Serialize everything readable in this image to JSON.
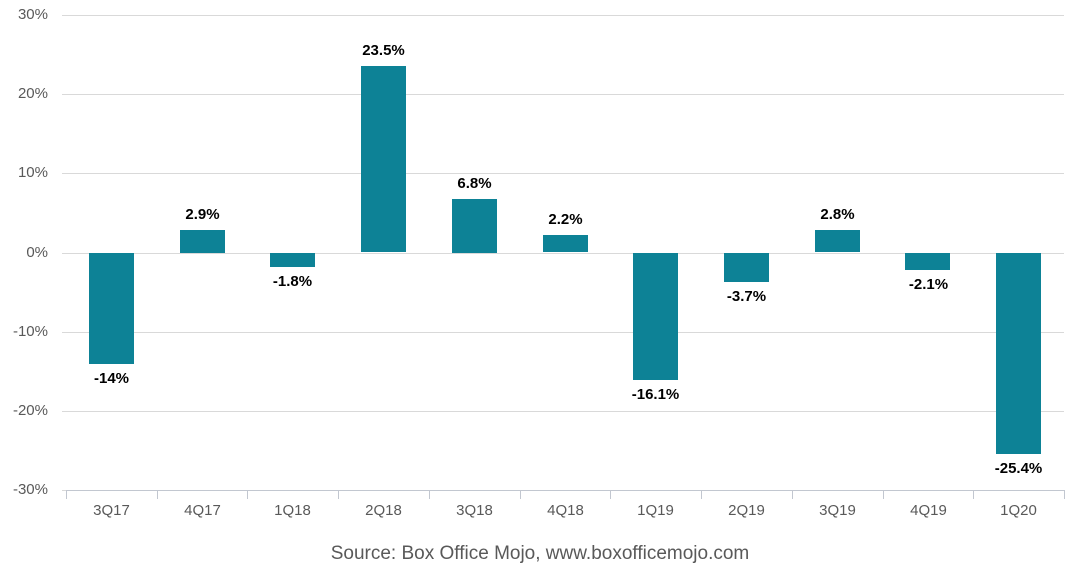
{
  "chart_data": {
    "type": "bar",
    "title": "",
    "xlabel": "",
    "ylabel": "",
    "categories": [
      "3Q17",
      "4Q17",
      "1Q18",
      "2Q18",
      "3Q18",
      "4Q18",
      "1Q19",
      "2Q19",
      "3Q19",
      "4Q19",
      "1Q20"
    ],
    "values": [
      -14,
      2.9,
      -1.8,
      23.5,
      6.8,
      2.2,
      -16.1,
      -3.7,
      2.8,
      -2.1,
      -25.4
    ],
    "value_labels": [
      "-14%",
      "2.9%",
      "-1.8%",
      "23.5%",
      "6.8%",
      "2.2%",
      "-16.1%",
      "-3.7%",
      "2.8%",
      "-2.1%",
      "-25.4%"
    ],
    "y_ticks": [
      {
        "value": 30,
        "label": "30%"
      },
      {
        "value": 20,
        "label": "20%"
      },
      {
        "value": 10,
        "label": "10%"
      },
      {
        "value": 0,
        "label": "0%"
      },
      {
        "value": -10,
        "label": "-10%"
      },
      {
        "value": -20,
        "label": "-20%"
      },
      {
        "value": -30,
        "label": "-30%"
      }
    ],
    "ylim": [
      -30,
      30
    ],
    "grid": true,
    "legend": "none",
    "bar_color": "#0d8296"
  },
  "footer": {
    "source_text": "Source: Box Office Mojo, www.boxofficemojo.com"
  },
  "colors": {
    "bar": "#0d8296",
    "gridline": "#d9d9d9",
    "axis": "#c2c7d0",
    "tick_label": "#595959",
    "data_label": "#000000",
    "background": "#ffffff"
  }
}
